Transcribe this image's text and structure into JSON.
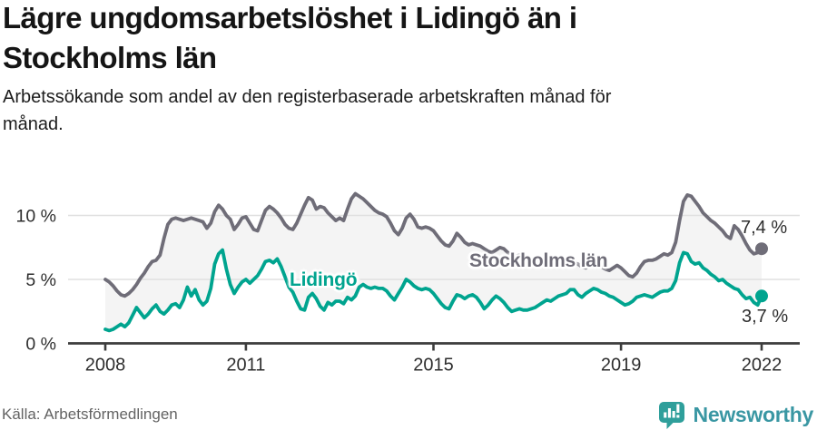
{
  "header": {
    "title": "Lägre ungdomsarbetslöshet i Lidingö än i\nStockholms län",
    "subtitle": "Arbetssökande som andel av den registerbaserade arbetskraften månad för\nmånad."
  },
  "footer": {
    "source": "Källa: Arbetsförmedlingen",
    "brand": "Newsworthy"
  },
  "colors": {
    "stockholm_line": "#6f6d78",
    "lidingo_line": "#00a48f",
    "fill_between": "#f4f4f4",
    "gridline": "#e0e0e0",
    "axis": "#3c3c3c",
    "tick_text": "#2e2e2e",
    "brand_teal": "#3a97a3",
    "logo_icon": "#2f9f9b"
  },
  "chart_data": {
    "type": "line",
    "freq": "monthly",
    "x_start": "2008-01",
    "x_end": "2022-01",
    "ylim": [
      0,
      12.5
    ],
    "grid": "horizontal",
    "legend_position": "inline-labels",
    "fill_between_color": "#f4f4f4",
    "x_ticks": [
      {
        "month": 0,
        "label": "2008"
      },
      {
        "month": 36,
        "label": "2011"
      },
      {
        "month": 84,
        "label": "2015"
      },
      {
        "month": 132,
        "label": "2019"
      },
      {
        "month": 168,
        "label": "2022"
      }
    ],
    "y_ticks": [
      {
        "value": 0,
        "label": "0 %"
      },
      {
        "value": 5,
        "label": "5 %"
      },
      {
        "value": 10,
        "label": "10 %"
      }
    ],
    "series": [
      {
        "name": "Stockholms län",
        "color": "#6f6d78",
        "end_value": 7.4,
        "end_label": "7,4 %",
        "values": [
          5.0,
          4.8,
          4.5,
          4.1,
          3.8,
          3.7,
          3.9,
          4.2,
          4.6,
          5.1,
          5.5,
          6.0,
          6.4,
          6.5,
          6.9,
          8.2,
          9.3,
          9.7,
          9.8,
          9.7,
          9.6,
          9.7,
          9.8,
          9.7,
          9.6,
          9.5,
          9.0,
          9.4,
          10.3,
          10.8,
          10.5,
          10.0,
          9.7,
          8.9,
          9.3,
          9.8,
          9.9,
          9.4,
          8.9,
          8.8,
          9.6,
          10.4,
          10.7,
          10.5,
          10.2,
          9.8,
          9.3,
          9.0,
          8.9,
          9.4,
          10.1,
          10.8,
          11.4,
          11.2,
          10.5,
          10.7,
          10.6,
          10.2,
          9.9,
          9.6,
          9.8,
          9.6,
          10.5,
          11.3,
          11.7,
          11.5,
          11.3,
          11.0,
          10.7,
          10.4,
          10.2,
          10.1,
          9.9,
          9.4,
          8.8,
          8.5,
          9.0,
          9.8,
          10.1,
          9.7,
          9.1,
          9.0,
          9.1,
          9.0,
          8.8,
          8.4,
          8.0,
          7.7,
          7.6,
          8.0,
          8.6,
          8.3,
          7.9,
          7.7,
          7.8,
          7.7,
          7.6,
          7.4,
          7.2,
          7.1,
          7.3,
          7.5,
          7.4,
          7.1,
          6.9,
          6.8,
          6.9,
          6.8,
          6.7,
          6.5,
          6.4,
          6.3,
          6.5,
          6.7,
          6.6,
          6.3,
          6.1,
          6.0,
          6.1,
          6.2,
          6.3,
          6.2,
          6.0,
          5.9,
          6.1,
          6.3,
          6.2,
          6.0,
          5.8,
          5.7,
          5.9,
          6.1,
          5.9,
          5.6,
          5.3,
          5.2,
          5.5,
          6.0,
          6.4,
          6.5,
          6.5,
          6.6,
          6.8,
          7.0,
          6.9,
          7.1,
          7.9,
          9.6,
          11.1,
          11.6,
          11.5,
          11.1,
          10.7,
          10.2,
          9.9,
          9.6,
          9.4,
          9.1,
          8.8,
          8.4,
          8.2,
          9.2,
          8.9,
          8.4,
          7.8,
          7.3,
          7.0,
          7.1,
          7.4
        ]
      },
      {
        "name": "Lidingö",
        "color": "#00a48f",
        "end_value": 3.7,
        "end_label": "3,7 %",
        "values": [
          1.1,
          1.0,
          1.1,
          1.3,
          1.5,
          1.3,
          1.6,
          2.2,
          2.8,
          2.4,
          2.0,
          2.3,
          2.7,
          3.0,
          2.5,
          2.3,
          2.6,
          3.0,
          3.1,
          2.8,
          3.4,
          4.4,
          3.7,
          4.2,
          3.4,
          3.0,
          3.3,
          4.3,
          6.2,
          7.0,
          7.3,
          5.8,
          4.6,
          3.9,
          4.4,
          4.8,
          5.0,
          4.7,
          5.0,
          5.3,
          5.8,
          6.4,
          6.5,
          6.3,
          6.6,
          6.0,
          5.2,
          4.4,
          4.0,
          3.3,
          2.7,
          2.6,
          3.6,
          3.9,
          3.5,
          2.9,
          2.6,
          3.2,
          3.0,
          3.3,
          3.3,
          3.1,
          3.6,
          3.4,
          3.7,
          4.4,
          4.6,
          4.4,
          4.3,
          4.4,
          4.3,
          4.3,
          4.1,
          3.7,
          3.4,
          3.9,
          4.4,
          5.0,
          4.8,
          4.5,
          4.3,
          4.2,
          4.3,
          4.2,
          3.9,
          3.5,
          3.1,
          2.8,
          2.7,
          3.3,
          3.8,
          3.7,
          3.5,
          3.7,
          3.8,
          3.6,
          3.2,
          2.7,
          3.0,
          3.4,
          3.7,
          3.5,
          3.2,
          2.8,
          2.5,
          2.6,
          2.7,
          2.6,
          2.6,
          2.7,
          2.8,
          3.0,
          3.2,
          3.4,
          3.3,
          3.5,
          3.7,
          3.8,
          3.9,
          4.2,
          4.2,
          3.8,
          3.6,
          3.9,
          4.1,
          4.3,
          4.2,
          4.0,
          3.9,
          3.7,
          3.6,
          3.4,
          3.2,
          3.0,
          3.1,
          3.3,
          3.6,
          3.7,
          3.8,
          3.7,
          3.6,
          3.8,
          4.0,
          4.1,
          4.1,
          4.3,
          4.9,
          6.3,
          7.1,
          7.0,
          6.4,
          6.2,
          6.3,
          5.9,
          5.7,
          5.4,
          5.2,
          4.9,
          5.0,
          4.7,
          4.5,
          4.3,
          4.2,
          3.8,
          3.5,
          3.6,
          3.2,
          3.0,
          3.7
        ]
      }
    ]
  }
}
